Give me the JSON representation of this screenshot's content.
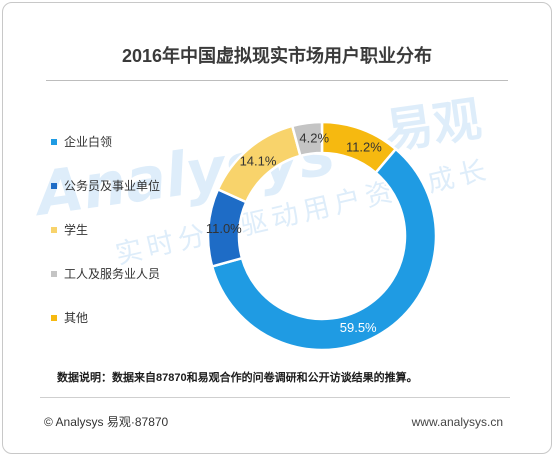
{
  "chart_data": {
    "type": "pie",
    "donut": true,
    "title": "2016年中国虚拟现实市场用户职业分布",
    "legend": "left",
    "slices": [
      {
        "name": "企业白领",
        "value": 59.5,
        "label": "59.5%",
        "color": "#1F9BE3",
        "label_color": "#FFFFFF"
      },
      {
        "name": "公务员及事业单位",
        "value": 11.0,
        "label": "11.0%",
        "color": "#1E6CC6",
        "label_color": "#333333"
      },
      {
        "name": "学生",
        "value": 14.1,
        "label": "14.1%",
        "color": "#F8D36B",
        "label_color": "#333333"
      },
      {
        "name": "工人及服务业人员",
        "value": 4.2,
        "label": "4.2%",
        "color": "#C4C4C4",
        "label_color": "#333333"
      },
      {
        "name": "其他",
        "value": 11.2,
        "label": "11.2%",
        "color": "#F6B910",
        "label_color": "#333333"
      }
    ]
  },
  "note": "数据说明：数据来自87870和易观合作的问卷调研和公开访谈结果的推算。",
  "footer": {
    "copyright": "© Analysys 易观·87870",
    "website": "www.analysys.cn"
  },
  "watermark": {
    "brand": "Analysys",
    "brand_cn": "易观",
    "slogan": "实时分析驱动用户资产成长"
  }
}
